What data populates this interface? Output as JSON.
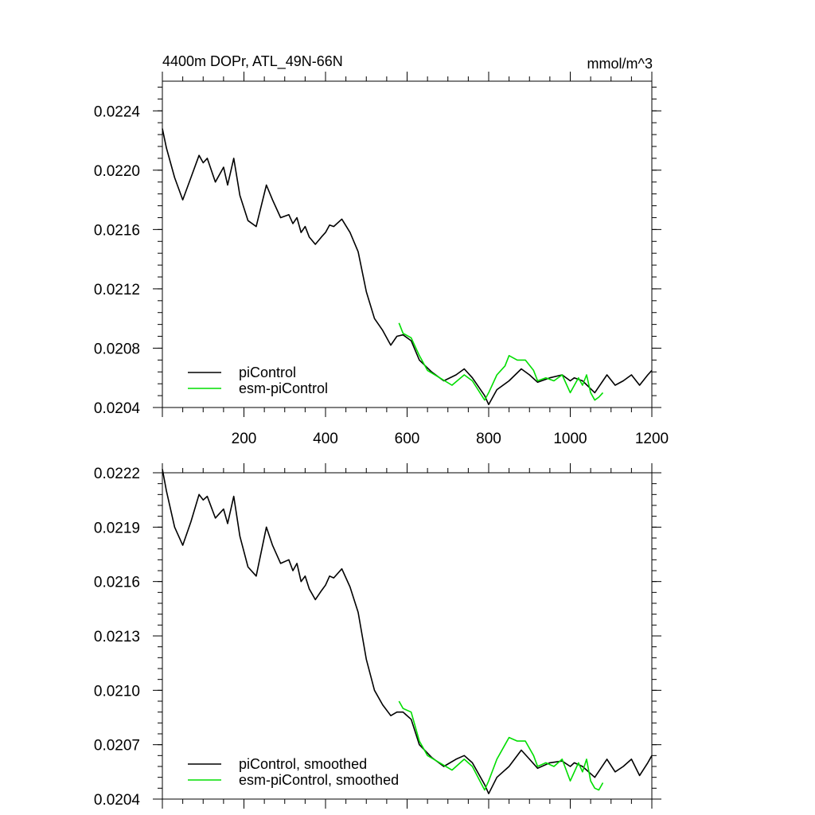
{
  "chart_data": [
    {
      "type": "line",
      "title": "4400m DOPr, ATL_49N-66N",
      "units": "mmol/m^3",
      "xlim": [
        0,
        1200
      ],
      "ylim": [
        0.0204,
        0.0226
      ],
      "x_ticks": [
        200,
        400,
        600,
        800,
        1000,
        1200
      ],
      "y_ticks": [
        "0.0204",
        "0.0208",
        "0.0212",
        "0.0216",
        "0.0220",
        "0.0224"
      ],
      "y_tick_values": [
        0.0204,
        0.0208,
        0.0212,
        0.0216,
        0.022,
        0.0224
      ],
      "legend_position": "bottom-left",
      "series": [
        {
          "name": "piControl",
          "color": "#000000",
          "x": [
            0,
            10,
            30,
            50,
            70,
            90,
            100,
            110,
            130,
            150,
            160,
            175,
            190,
            210,
            230,
            255,
            270,
            290,
            310,
            320,
            330,
            340,
            350,
            360,
            375,
            390,
            400,
            410,
            420,
            440,
            460,
            480,
            500,
            520,
            540,
            560,
            575,
            590,
            610,
            630,
            660,
            690,
            720,
            740,
            760,
            790,
            800,
            820,
            850,
            880,
            900,
            920,
            950,
            980,
            1000,
            1010,
            1030,
            1060,
            1090,
            1110,
            1130,
            1150,
            1170,
            1190,
            1200
          ],
          "y": [
            0.02228,
            0.02215,
            0.02195,
            0.0218,
            0.02195,
            0.0221,
            0.02205,
            0.02208,
            0.02192,
            0.02202,
            0.0219,
            0.02208,
            0.02183,
            0.02166,
            0.02162,
            0.0219,
            0.0218,
            0.02168,
            0.0217,
            0.02164,
            0.02168,
            0.02158,
            0.02162,
            0.02155,
            0.0215,
            0.02155,
            0.02158,
            0.02163,
            0.02162,
            0.02167,
            0.02158,
            0.02145,
            0.02118,
            0.021,
            0.02092,
            0.02082,
            0.02088,
            0.02089,
            0.02085,
            0.02072,
            0.02064,
            0.02058,
            0.02062,
            0.02066,
            0.0206,
            0.02048,
            0.02042,
            0.02052,
            0.02058,
            0.02066,
            0.02062,
            0.02057,
            0.0206,
            0.02062,
            0.02058,
            0.0206,
            0.02058,
            0.0205,
            0.02062,
            0.02055,
            0.02058,
            0.02062,
            0.02055,
            0.02062,
            0.02065
          ]
        },
        {
          "name": "esm-piControl",
          "color": "#00dd00",
          "x": [
            580,
            590,
            610,
            630,
            650,
            680,
            710,
            740,
            760,
            790,
            800,
            820,
            840,
            850,
            870,
            890,
            910,
            920,
            940,
            960,
            980,
            1000,
            1020,
            1030,
            1040,
            1050,
            1060,
            1070,
            1080
          ],
          "y": [
            0.02097,
            0.0209,
            0.02087,
            0.02075,
            0.02065,
            0.0206,
            0.02055,
            0.02062,
            0.02058,
            0.02045,
            0.0205,
            0.02062,
            0.02068,
            0.02075,
            0.02072,
            0.02072,
            0.02065,
            0.02058,
            0.0206,
            0.02058,
            0.02062,
            0.0205,
            0.0206,
            0.02055,
            0.02062,
            0.0205,
            0.02045,
            0.02047,
            0.0205
          ]
        }
      ]
    },
    {
      "type": "line",
      "title": "",
      "xlim": [
        0,
        1200
      ],
      "ylim": [
        0.0204,
        0.0222
      ],
      "x_ticks": [],
      "y_ticks": [
        "0.0204",
        "0.0207",
        "0.0210",
        "0.0213",
        "0.0216",
        "0.0219",
        "0.0222"
      ],
      "y_tick_values": [
        0.0204,
        0.0207,
        0.021,
        0.0213,
        0.0216,
        0.0219,
        0.0222
      ],
      "legend_position": "bottom-left",
      "series": [
        {
          "name": "piControl, smoothed",
          "color": "#000000",
          "x": [
            0,
            10,
            30,
            50,
            70,
            90,
            100,
            110,
            130,
            150,
            160,
            175,
            190,
            210,
            230,
            255,
            270,
            290,
            310,
            320,
            330,
            340,
            350,
            360,
            375,
            390,
            400,
            410,
            420,
            440,
            460,
            480,
            500,
            520,
            540,
            560,
            575,
            590,
            610,
            630,
            660,
            690,
            720,
            740,
            760,
            790,
            800,
            820,
            850,
            880,
            900,
            920,
            950,
            980,
            1000,
            1010,
            1030,
            1060,
            1090,
            1110,
            1130,
            1150,
            1170,
            1190,
            1200
          ],
          "y": [
            0.02222,
            0.0221,
            0.0219,
            0.0218,
            0.02193,
            0.02208,
            0.02205,
            0.02207,
            0.02195,
            0.022,
            0.02192,
            0.02207,
            0.02185,
            0.02168,
            0.02163,
            0.0219,
            0.0218,
            0.0217,
            0.02172,
            0.02166,
            0.0217,
            0.0216,
            0.02163,
            0.02156,
            0.0215,
            0.02155,
            0.02158,
            0.02163,
            0.02162,
            0.02167,
            0.02157,
            0.02143,
            0.02117,
            0.021,
            0.02092,
            0.02086,
            0.02088,
            0.02088,
            0.02084,
            0.0207,
            0.02063,
            0.02058,
            0.02062,
            0.02064,
            0.0206,
            0.02048,
            0.02043,
            0.02052,
            0.02058,
            0.02067,
            0.02062,
            0.02057,
            0.0206,
            0.02061,
            0.02058,
            0.0206,
            0.02058,
            0.02052,
            0.02062,
            0.02055,
            0.02058,
            0.02062,
            0.02053,
            0.0206,
            0.02064
          ]
        },
        {
          "name": "esm-piControl, smoothed",
          "color": "#00dd00",
          "x": [
            580,
            590,
            610,
            630,
            650,
            680,
            710,
            740,
            760,
            790,
            800,
            820,
            840,
            850,
            870,
            890,
            910,
            920,
            940,
            960,
            980,
            1000,
            1020,
            1030,
            1040,
            1050,
            1060,
            1070,
            1080
          ],
          "y": [
            0.02094,
            0.0209,
            0.02088,
            0.02072,
            0.02064,
            0.0206,
            0.02056,
            0.02062,
            0.02058,
            0.02045,
            0.0205,
            0.02062,
            0.0207,
            0.02074,
            0.02072,
            0.02072,
            0.02064,
            0.02058,
            0.0206,
            0.02058,
            0.02062,
            0.0205,
            0.0206,
            0.02055,
            0.02062,
            0.0205,
            0.02046,
            0.02045,
            0.02049
          ]
        }
      ]
    }
  ]
}
